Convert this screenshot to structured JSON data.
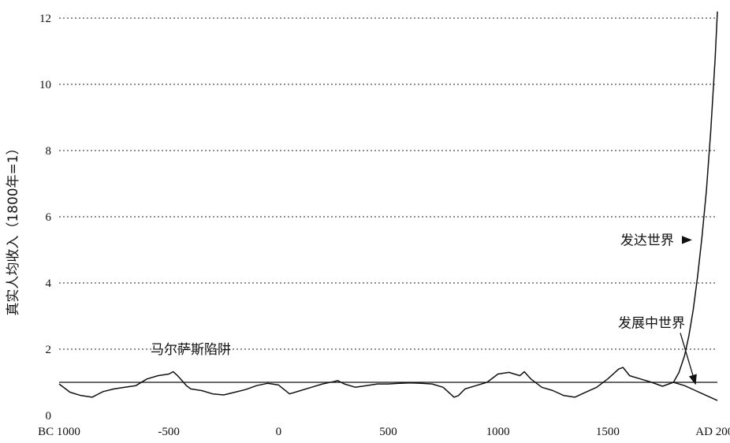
{
  "chart_data": {
    "type": "line",
    "title": "",
    "ylabel": "真实人均收入（1800年=1）",
    "xlim": [
      -1000,
      2000
    ],
    "ylim": [
      0,
      12
    ],
    "y_ticks": [
      0,
      2,
      4,
      6,
      8,
      10,
      12
    ],
    "x_ticks": [
      {
        "value": -1000,
        "label": "BC 1000"
      },
      {
        "value": -500,
        "label": "-500"
      },
      {
        "value": 0,
        "label": "0"
      },
      {
        "value": 500,
        "label": "500"
      },
      {
        "value": 1000,
        "label": "1000"
      },
      {
        "value": 1500,
        "label": "1500"
      },
      {
        "value": 2000,
        "label": "AD 2000"
      }
    ],
    "grid": "horizontal dotted",
    "reference_line": {
      "y": 1.0
    },
    "series": [
      {
        "name": "马尔萨斯陷阱",
        "x": [
          -1000,
          -950,
          -900,
          -850,
          -800,
          -750,
          -700,
          -650,
          -600,
          -550,
          -500,
          -480,
          -460,
          -440,
          -420,
          -400,
          -350,
          -300,
          -250,
          -200,
          -150,
          -100,
          -50,
          0,
          50,
          100,
          150,
          200,
          250,
          270,
          300,
          350,
          400,
          450,
          500,
          550,
          600,
          650,
          700,
          750,
          800,
          820,
          850,
          900,
          950,
          1000,
          1050,
          1100,
          1120,
          1150,
          1200,
          1250,
          1300,
          1350,
          1400,
          1450,
          1500,
          1550,
          1570,
          1600,
          1650,
          1700,
          1750,
          1800
        ],
        "y": [
          0.95,
          0.7,
          0.6,
          0.55,
          0.72,
          0.8,
          0.85,
          0.9,
          1.1,
          1.2,
          1.25,
          1.32,
          1.2,
          1.05,
          0.9,
          0.8,
          0.75,
          0.65,
          0.62,
          0.7,
          0.78,
          0.9,
          0.97,
          0.92,
          0.65,
          0.75,
          0.85,
          0.95,
          1.02,
          1.05,
          0.95,
          0.85,
          0.9,
          0.95,
          0.95,
          0.97,
          0.98,
          0.97,
          0.95,
          0.85,
          0.55,
          0.6,
          0.8,
          0.9,
          1.0,
          1.25,
          1.3,
          1.2,
          1.32,
          1.1,
          0.85,
          0.75,
          0.6,
          0.55,
          0.7,
          0.85,
          1.1,
          1.4,
          1.45,
          1.2,
          1.1,
          1.0,
          0.88,
          1.0
        ]
      },
      {
        "name": "发达世界",
        "x": [
          1800,
          1825,
          1850,
          1870,
          1890,
          1910,
          1930,
          1950,
          1970,
          1990,
          2000
        ],
        "y": [
          1.0,
          1.3,
          1.8,
          2.4,
          3.2,
          4.2,
          5.4,
          6.8,
          8.6,
          10.8,
          12.2
        ]
      },
      {
        "name": "发展中世界",
        "x": [
          1800,
          1850,
          1900,
          1950,
          2000
        ],
        "y": [
          1.0,
          0.9,
          0.75,
          0.6,
          0.45
        ]
      }
    ],
    "annotations": [
      {
        "text": "马尔萨斯陷阱",
        "x": -400,
        "y": 2.0
      },
      {
        "text": "发达世界",
        "x": 1680,
        "y": 5.3,
        "arrow_to": [
          1880,
          5.3
        ]
      },
      {
        "text": "发展中世界",
        "x": 1700,
        "y": 2.8,
        "arrow_to": [
          1900,
          0.95
        ]
      }
    ]
  }
}
